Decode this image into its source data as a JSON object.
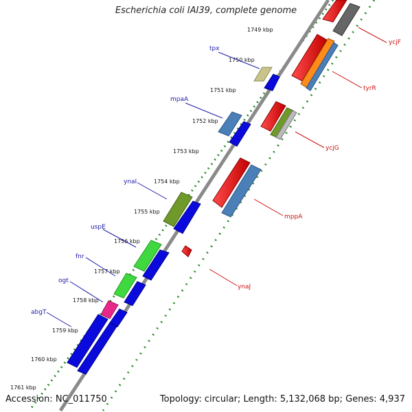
{
  "title": "Escherichia coli IAI39, complete genome",
  "accession": "Accession: NC_011750",
  "summary": "Topology: circular; Length: 5,132,068 bp; Genes: 4,937",
  "kbp_labels": [
    "1749 kbp",
    "1750 kbp",
    "1751 kbp",
    "1752 kbp",
    "1753 kbp",
    "1754 kbp",
    "1755 kbp",
    "1756 kbp",
    "1757 kbp",
    "1758 kbp",
    "1759 kbp",
    "1760 kbp",
    "1761 kbp"
  ],
  "genes_left": [
    {
      "name": "tpx"
    },
    {
      "name": "mpaA"
    },
    {
      "name": "ynaI"
    },
    {
      "name": "uspE"
    },
    {
      "name": "fnr"
    },
    {
      "name": "ogt"
    },
    {
      "name": "abgT"
    }
  ],
  "genes_right": [
    {
      "name": "ycjF"
    },
    {
      "name": "tyrR"
    },
    {
      "name": "ycjG"
    },
    {
      "name": "mppA"
    },
    {
      "name": "ynaJ"
    }
  ],
  "colors": {
    "left_label": "#1a1aa8",
    "right_label": "#cc1111",
    "backbone": "#888888",
    "dots": "#2e8b2e"
  }
}
